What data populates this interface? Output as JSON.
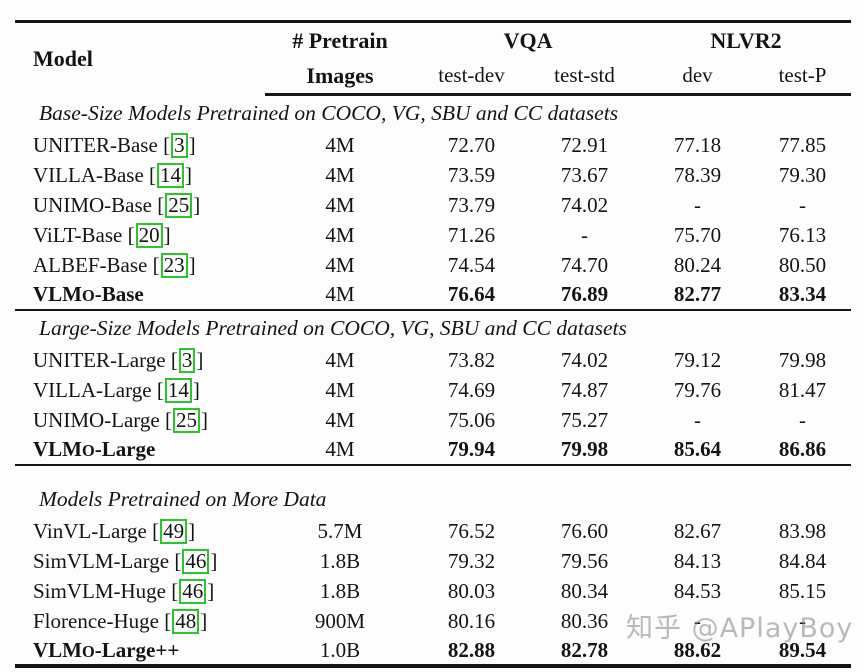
{
  "watermark": {
    "text": "知乎 @APlayBoy",
    "color": "#ababab"
  },
  "table": {
    "citation_box_color": "#2bc42b",
    "header": {
      "model": "Model",
      "pretrain_line1": "# Pretrain",
      "pretrain_line2": "Images",
      "group_vqa": "VQA",
      "group_nlvr2": "NLVR2",
      "sub_test_dev": "test-dev",
      "sub_test_std": "test-std",
      "sub_dev": "dev",
      "sub_test_p": "test-P"
    },
    "sections": [
      {
        "title": "Base-Size Models Pretrained on COCO, VG, SBU and CC datasets",
        "rows": [
          {
            "model": "UNITER-Base",
            "cite": "3",
            "bold": false,
            "values": [
              "4M",
              "72.70",
              "72.91",
              "77.18",
              "77.85"
            ]
          },
          {
            "model": "VILLA-Base",
            "cite": "14",
            "bold": false,
            "values": [
              "4M",
              "73.59",
              "73.67",
              "78.39",
              "79.30"
            ]
          },
          {
            "model": "UNIMO-Base",
            "cite": "25",
            "bold": false,
            "values": [
              "4M",
              "73.79",
              "74.02",
              "-",
              "-"
            ]
          },
          {
            "model": "ViLT-Base",
            "cite": "20",
            "bold": false,
            "values": [
              "4M",
              "71.26",
              "-",
              "75.70",
              "76.13"
            ]
          },
          {
            "model": "ALBEF-Base",
            "cite": "23",
            "bold": false,
            "values": [
              "4M",
              "74.54",
              "74.70",
              "80.24",
              "80.50"
            ]
          },
          {
            "model": "VLMo-Base",
            "model_parts": [
              "VLM",
              "o",
              "-Base"
            ],
            "cite": null,
            "bold": true,
            "values": [
              "4M",
              "76.64",
              "76.89",
              "82.77",
              "83.34"
            ]
          }
        ]
      },
      {
        "title": "Large-Size Models Pretrained on COCO, VG, SBU and CC datasets",
        "rows": [
          {
            "model": "UNITER-Large",
            "cite": "3",
            "bold": false,
            "values": [
              "4M",
              "73.82",
              "74.02",
              "79.12",
              "79.98"
            ]
          },
          {
            "model": "VILLA-Large",
            "cite": "14",
            "bold": false,
            "values": [
              "4M",
              "74.69",
              "74.87",
              "79.76",
              "81.47"
            ]
          },
          {
            "model": "UNIMO-Large",
            "cite": "25",
            "bold": false,
            "values": [
              "4M",
              "75.06",
              "75.27",
              "-",
              "-"
            ]
          },
          {
            "model": "VLMo-Large",
            "model_parts": [
              "VLM",
              "o",
              "-Large"
            ],
            "cite": null,
            "bold": true,
            "values": [
              "4M",
              "79.94",
              "79.98",
              "85.64",
              "86.86"
            ]
          }
        ]
      },
      {
        "title": "Models Pretrained on More Data",
        "rows": [
          {
            "model": "VinVL-Large",
            "cite": "49",
            "bold": false,
            "values": [
              "5.7M",
              "76.52",
              "76.60",
              "82.67",
              "83.98"
            ]
          },
          {
            "model": "SimVLM-Large",
            "cite": "46",
            "bold": false,
            "values": [
              "1.8B",
              "79.32",
              "79.56",
              "84.13",
              "84.84"
            ]
          },
          {
            "model": "SimVLM-Huge",
            "cite": "46",
            "bold": false,
            "values": [
              "1.8B",
              "80.03",
              "80.34",
              "84.53",
              "85.15"
            ]
          },
          {
            "model": "Florence-Huge",
            "cite": "48",
            "bold": false,
            "values": [
              "900M",
              "80.16",
              "80.36",
              "-",
              "-"
            ]
          },
          {
            "model": "VLMo-Large++",
            "model_parts": [
              "VLM",
              "o",
              "-Large++"
            ],
            "cite": null,
            "bold": true,
            "values": [
              "1.0B",
              "82.88",
              "82.78",
              "88.62",
              "89.54"
            ]
          }
        ]
      }
    ]
  }
}
